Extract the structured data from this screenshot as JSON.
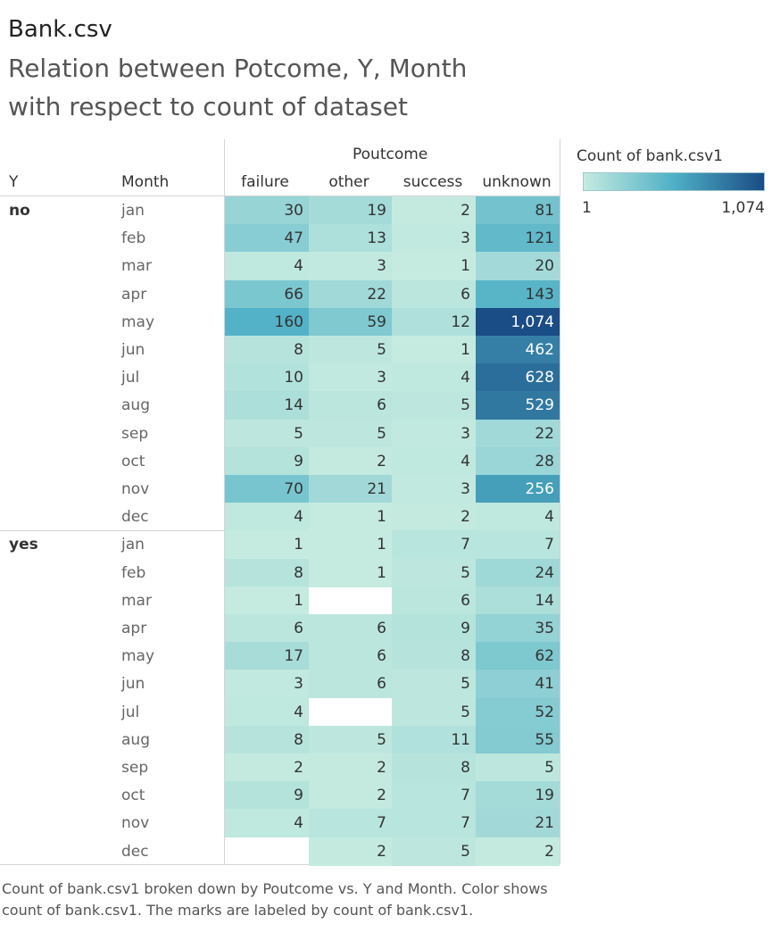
{
  "header": {
    "title": "Bank.csv",
    "subtitle_line1": "Relation between Potcome, Y, Month",
    "subtitle_line2": "with respect to count of dataset"
  },
  "table_headers": {
    "y": "Y",
    "month": "Month",
    "group": "Poutcome"
  },
  "legend": {
    "title": "Count of bank.csv1",
    "min_label": "1",
    "max_label": "1,074",
    "min": 1,
    "max": 1074,
    "colors": [
      "#c5ebe0",
      "#4eb0c6",
      "#1a4c85"
    ]
  },
  "chart_data": {
    "type": "heatmap",
    "columns": [
      "failure",
      "other",
      "success",
      "unknown"
    ],
    "groups": [
      {
        "y": "no",
        "rows": [
          {
            "month": "jan",
            "values": [
              30,
              19,
              2,
              81
            ]
          },
          {
            "month": "feb",
            "values": [
              47,
              13,
              3,
              121
            ]
          },
          {
            "month": "mar",
            "values": [
              4,
              3,
              1,
              20
            ]
          },
          {
            "month": "apr",
            "values": [
              66,
              22,
              6,
              143
            ]
          },
          {
            "month": "may",
            "values": [
              160,
              59,
              12,
              1074
            ]
          },
          {
            "month": "jun",
            "values": [
              8,
              5,
              1,
              462
            ]
          },
          {
            "month": "jul",
            "values": [
              10,
              3,
              4,
              628
            ]
          },
          {
            "month": "aug",
            "values": [
              14,
              6,
              5,
              529
            ]
          },
          {
            "month": "sep",
            "values": [
              5,
              5,
              3,
              22
            ]
          },
          {
            "month": "oct",
            "values": [
              9,
              2,
              4,
              28
            ]
          },
          {
            "month": "nov",
            "values": [
              70,
              21,
              3,
              256
            ]
          },
          {
            "month": "dec",
            "values": [
              4,
              1,
              2,
              4
            ]
          }
        ]
      },
      {
        "y": "yes",
        "rows": [
          {
            "month": "jan",
            "values": [
              1,
              1,
              7,
              7
            ]
          },
          {
            "month": "feb",
            "values": [
              8,
              1,
              5,
              24
            ]
          },
          {
            "month": "mar",
            "values": [
              1,
              null,
              6,
              14
            ]
          },
          {
            "month": "apr",
            "values": [
              6,
              6,
              9,
              35
            ]
          },
          {
            "month": "may",
            "values": [
              17,
              6,
              8,
              62
            ]
          },
          {
            "month": "jun",
            "values": [
              3,
              6,
              5,
              41
            ]
          },
          {
            "month": "jul",
            "values": [
              4,
              null,
              5,
              52
            ]
          },
          {
            "month": "aug",
            "values": [
              8,
              5,
              11,
              55
            ]
          },
          {
            "month": "sep",
            "values": [
              2,
              2,
              8,
              5
            ]
          },
          {
            "month": "oct",
            "values": [
              9,
              2,
              7,
              19
            ]
          },
          {
            "month": "nov",
            "values": [
              4,
              7,
              7,
              21
            ]
          },
          {
            "month": "dec",
            "values": [
              null,
              2,
              5,
              2
            ]
          }
        ]
      }
    ]
  },
  "caption": "Count of bank.csv1 broken down by Poutcome vs. Y and Month.  Color shows count of bank.csv1.  The marks are labeled by count of bank.csv1."
}
